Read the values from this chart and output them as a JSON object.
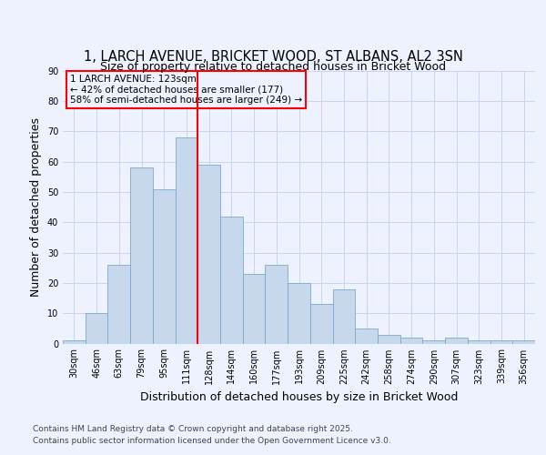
{
  "title1": "1, LARCH AVENUE, BRICKET WOOD, ST ALBANS, AL2 3SN",
  "title2": "Size of property relative to detached houses in Bricket Wood",
  "xlabel": "Distribution of detached houses by size in Bricket Wood",
  "ylabel": "Number of detached properties",
  "bins": [
    "30sqm",
    "46sqm",
    "63sqm",
    "79sqm",
    "95sqm",
    "111sqm",
    "128sqm",
    "144sqm",
    "160sqm",
    "177sqm",
    "193sqm",
    "209sqm",
    "225sqm",
    "242sqm",
    "258sqm",
    "274sqm",
    "290sqm",
    "307sqm",
    "323sqm",
    "339sqm",
    "356sqm"
  ],
  "values": [
    1,
    10,
    26,
    58,
    51,
    68,
    59,
    42,
    23,
    26,
    20,
    13,
    18,
    5,
    3,
    2,
    1,
    2,
    1,
    1,
    1
  ],
  "bar_color": "#c8d8ec",
  "bar_edge_color": "#7aaacb",
  "red_line_x": 5.5,
  "annotation_line1": "1 LARCH AVENUE: 123sqm",
  "annotation_line2": "← 42% of detached houses are smaller (177)",
  "annotation_line3": "58% of semi-detached houses are larger (249) →",
  "ylim": [
    0,
    90
  ],
  "yticks": [
    0,
    10,
    20,
    30,
    40,
    50,
    60,
    70,
    80,
    90
  ],
  "footnote1": "Contains HM Land Registry data © Crown copyright and database right 2025.",
  "footnote2": "Contains public sector information licensed under the Open Government Licence v3.0.",
  "bg_color": "#eef2ff",
  "grid_color": "#c8d4f0",
  "title1_fontsize": 10.5,
  "title2_fontsize": 9,
  "axis_label_fontsize": 9,
  "tick_fontsize": 7,
  "footnote_fontsize": 6.5,
  "ann_fontsize": 7.5
}
